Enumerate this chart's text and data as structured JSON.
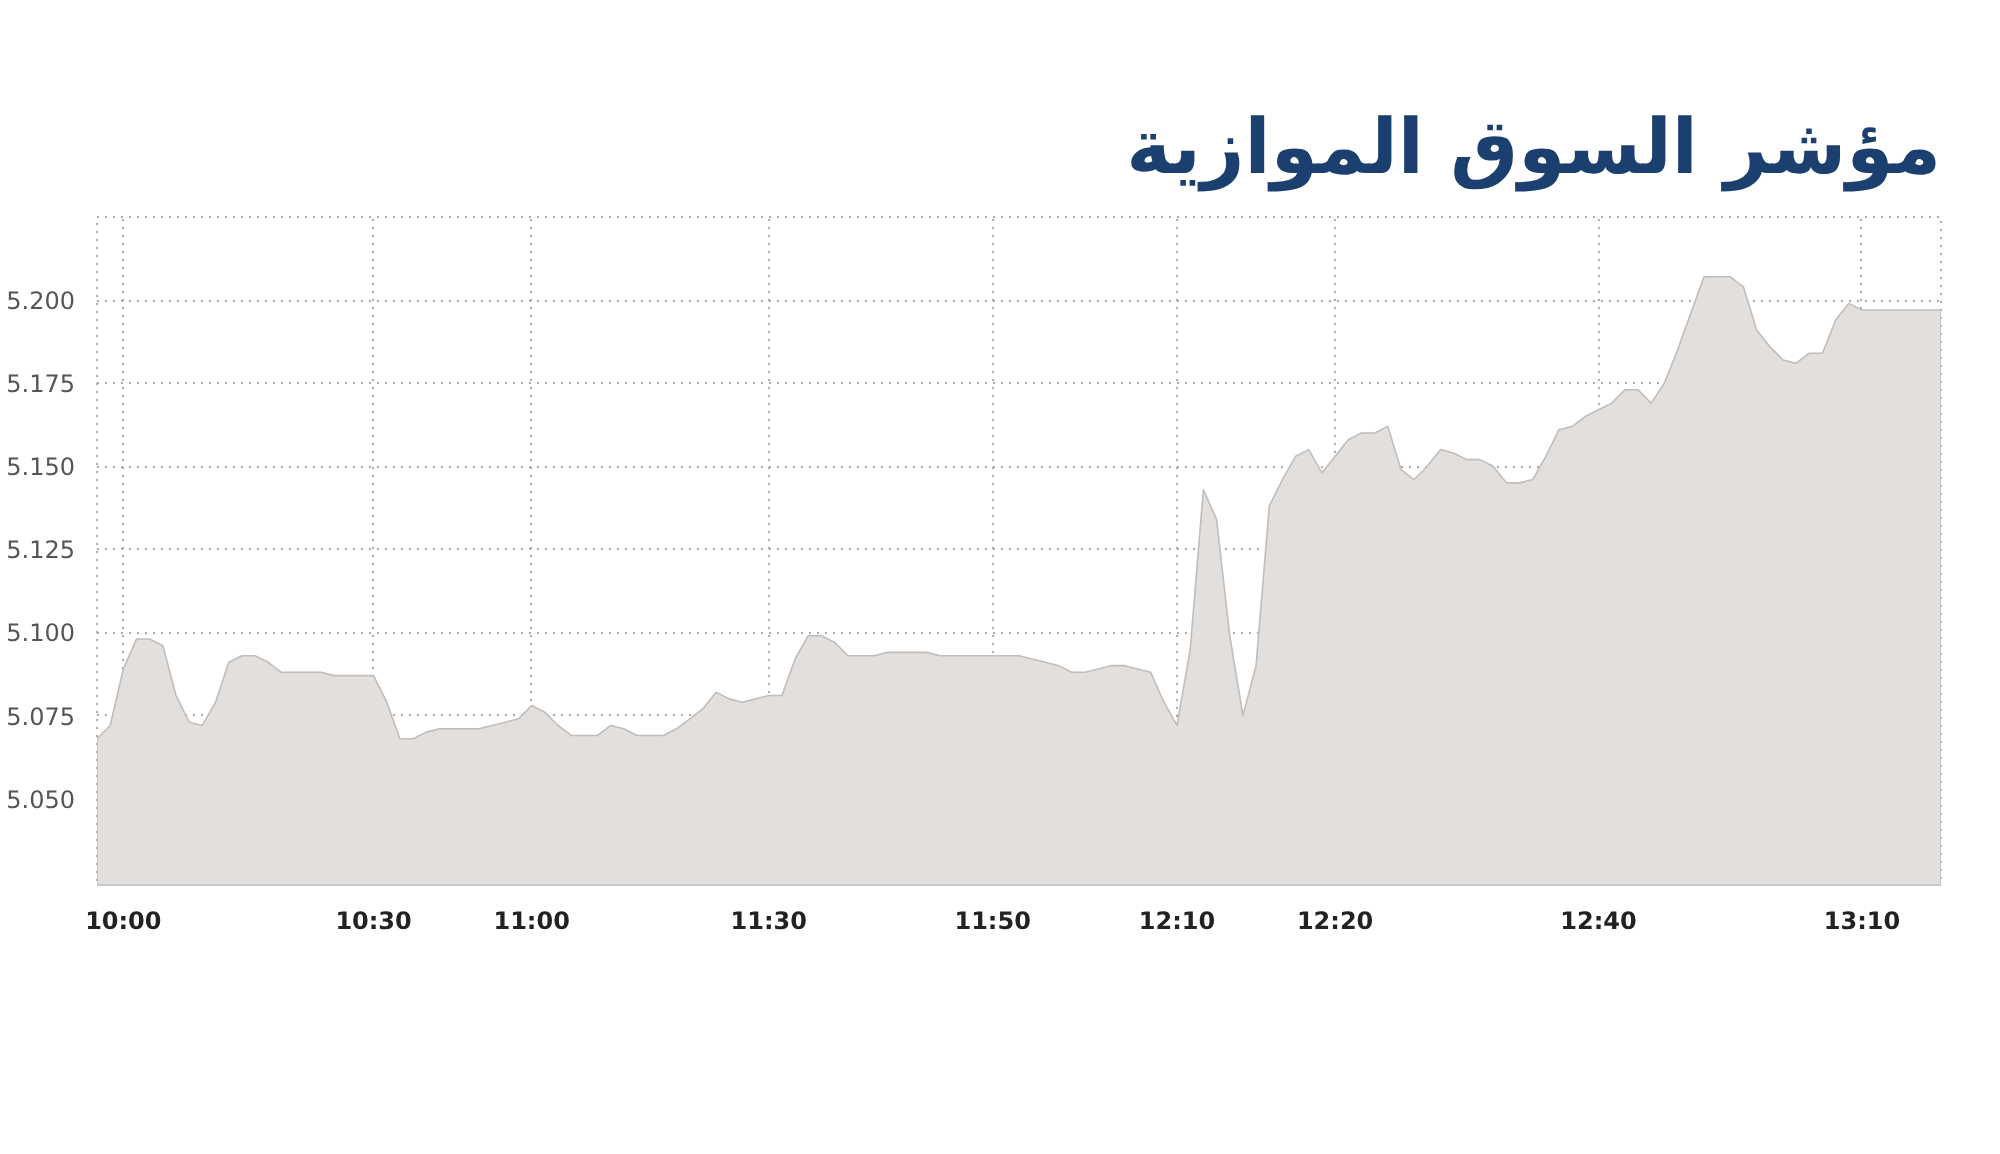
{
  "chart_data": {
    "type": "area",
    "title": "مؤشر السوق الموازية",
    "categories": [
      null,
      null,
      "10:00",
      null,
      null,
      null,
      null,
      null,
      null,
      null,
      null,
      null,
      null,
      null,
      null,
      null,
      null,
      null,
      null,
      null,
      null,
      "10:30",
      null,
      null,
      null,
      null,
      null,
      null,
      null,
      null,
      null,
      null,
      null,
      "11:00",
      null,
      null,
      null,
      null,
      null,
      null,
      null,
      null,
      null,
      null,
      null,
      null,
      null,
      null,
      null,
      null,
      null,
      "11:30",
      null,
      null,
      null,
      null,
      null,
      null,
      null,
      null,
      null,
      null,
      null,
      null,
      null,
      null,
      null,
      null,
      "11:50",
      null,
      null,
      null,
      null,
      null,
      null,
      null,
      null,
      null,
      null,
      null,
      null,
      null,
      "12:10",
      null,
      null,
      null,
      null,
      null,
      null,
      null,
      null,
      null,
      null,
      null,
      "12:20",
      null,
      null,
      null,
      null,
      null,
      null,
      null,
      null,
      null,
      null,
      null,
      null,
      null,
      null,
      null,
      null,
      null,
      null,
      null,
      "12:40",
      null,
      null,
      null,
      null,
      null,
      null,
      null,
      null,
      null,
      null,
      null,
      null,
      null,
      null,
      null,
      null,
      null,
      null,
      null,
      "13:10",
      null,
      null,
      null,
      null,
      null,
      null
    ],
    "series": [
      {
        "color": "#e2dfdd",
        "values": [
          5.068,
          5.072,
          5.089,
          5.098,
          5.098,
          5.096,
          5.081,
          5.073,
          5.072,
          5.079,
          5.091,
          5.093,
          5.093,
          5.091,
          5.088,
          5.088,
          5.088,
          5.088,
          5.087,
          5.087,
          5.087,
          5.087,
          5.079,
          5.068,
          5.068,
          5.07,
          5.071,
          5.071,
          5.071,
          5.071,
          5.072,
          5.073,
          5.074,
          5.078,
          5.076,
          5.072,
          5.069,
          5.069,
          5.069,
          5.072,
          5.071,
          5.069,
          5.069,
          5.069,
          5.071,
          5.074,
          5.077,
          5.082,
          5.08,
          5.079,
          5.08,
          5.081,
          5.081,
          5.092,
          5.099,
          5.099,
          5.097,
          5.093,
          5.093,
          5.093,
          5.094,
          5.094,
          5.094,
          5.094,
          5.093,
          5.093,
          5.093,
          5.093,
          5.093,
          5.093,
          5.093,
          5.092,
          5.091,
          5.09,
          5.088,
          5.088,
          5.089,
          5.09,
          5.09,
          5.089,
          5.088,
          5.079,
          5.072,
          5.095,
          5.143,
          5.134,
          5.099,
          5.075,
          5.09,
          5.138,
          5.146,
          5.153,
          5.155,
          5.148,
          5.153,
          5.158,
          5.16,
          5.16,
          5.162,
          5.149,
          5.146,
          5.15,
          5.155,
          5.154,
          5.152,
          5.152,
          5.15,
          5.145,
          5.145,
          5.146,
          5.153,
          5.161,
          5.162,
          5.165,
          5.167,
          5.169,
          5.173,
          5.173,
          5.169,
          5.175,
          5.185,
          5.196,
          5.207,
          5.207,
          5.207,
          5.204,
          5.191,
          5.186,
          5.182,
          5.181,
          5.184,
          5.184,
          5.194,
          5.199,
          5.197,
          5.197,
          5.197,
          5.197,
          5.197,
          5.197,
          5.197
        ]
      }
    ],
    "ylim": [
      5.024,
      5.225
    ],
    "yticks": [
      {
        "value": 5.05,
        "label": "5.050"
      },
      {
        "value": 5.075,
        "label": "5.075"
      },
      {
        "value": 5.1,
        "label": "5.100"
      },
      {
        "value": 5.125,
        "label": "5.125"
      },
      {
        "value": 5.15,
        "label": "5.150"
      },
      {
        "value": 5.175,
        "label": "5.175"
      },
      {
        "value": 5.2,
        "label": "5.200"
      },
      {
        "value": 5.225,
        "label": null
      }
    ],
    "grid": true
  }
}
